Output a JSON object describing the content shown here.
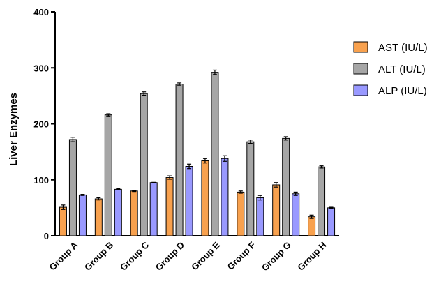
{
  "chart_data": {
    "type": "bar",
    "ylabel": "Liver Enzymes",
    "xlabel": "",
    "ylim": [
      0,
      400
    ],
    "yticks": [
      0,
      100,
      200,
      300,
      400
    ],
    "grid": false,
    "legend_position": "right",
    "categories": [
      "Group A",
      "Group B",
      "Group C",
      "Group D",
      "Group E",
      "Group F",
      "Group G",
      "Group H"
    ],
    "series": [
      {
        "name": "AST (IU/L)",
        "color": "#F8A14E",
        "values": [
          51,
          66,
          80,
          104,
          134,
          78,
          91,
          34
        ],
        "errors": [
          4,
          2,
          1,
          3,
          4,
          2,
          4,
          3
        ]
      },
      {
        "name": "ALT (IU/L)",
        "color": "#A6A6A6",
        "values": [
          172,
          216,
          254,
          271,
          292,
          168,
          174,
          123
        ],
        "errors": [
          4,
          2,
          3,
          2,
          4,
          3,
          3,
          2
        ]
      },
      {
        "name": "ALP (IU/L)",
        "color": "#9999FF",
        "values": [
          73,
          83,
          95,
          124,
          138,
          68,
          75,
          50
        ],
        "errors": [
          1,
          1,
          0.5,
          4,
          5,
          4,
          3,
          1
        ]
      }
    ]
  }
}
